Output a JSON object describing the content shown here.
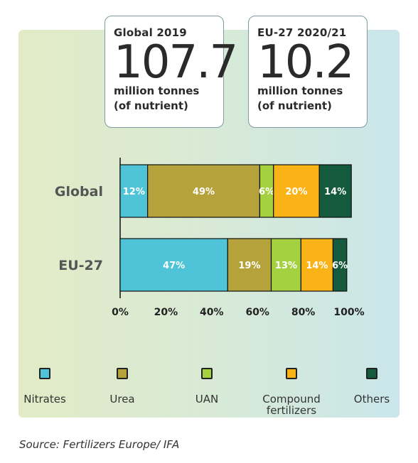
{
  "cards": [
    {
      "label": "Global 2019",
      "value": "107.7",
      "unit_line1": "million tonnes",
      "unit_line2": "(of nutrient)"
    },
    {
      "label": "EU-27 2020/21",
      "value": "10.2",
      "unit_line1": "million tonnes",
      "unit_line2": "(of nutrient)"
    }
  ],
  "chart_data": {
    "type": "bar",
    "orientation": "horizontal",
    "stacked": true,
    "categories": [
      "Global",
      "EU-27"
    ],
    "series": [
      {
        "name": "Nitrates",
        "values": [
          12,
          47
        ],
        "labels": [
          "12%",
          "47%"
        ],
        "color": "#4fc3d8"
      },
      {
        "name": "Urea",
        "values": [
          49,
          19
        ],
        "labels": [
          "49%",
          "19%"
        ],
        "color": "#b5a23a"
      },
      {
        "name": "UAN",
        "values": [
          6,
          13
        ],
        "labels": [
          "6%",
          "13%"
        ],
        "color": "#a3d13f"
      },
      {
        "name": "Compound fertilizers",
        "values": [
          20,
          14
        ],
        "labels": [
          "20%",
          "14%"
        ],
        "color": "#fab317"
      },
      {
        "name": "Others",
        "values": [
          14,
          6
        ],
        "labels": [
          "14%",
          "6%"
        ],
        "color": "#145a3c"
      }
    ],
    "xlim": [
      0,
      100
    ],
    "xticks": [
      "0%",
      "20%",
      "40%",
      "60%",
      "80%",
      "100%"
    ],
    "grid": false,
    "legend_position": "bottom"
  },
  "legend": [
    {
      "line1": "Nitrates",
      "line2": ""
    },
    {
      "line1": "Urea",
      "line2": ""
    },
    {
      "line1": "UAN",
      "line2": ""
    },
    {
      "line1": "Compound",
      "line2": "fertilizers"
    },
    {
      "line1": "Others",
      "line2": ""
    }
  ],
  "source": "Source: Fertilizers Europe/ IFA"
}
